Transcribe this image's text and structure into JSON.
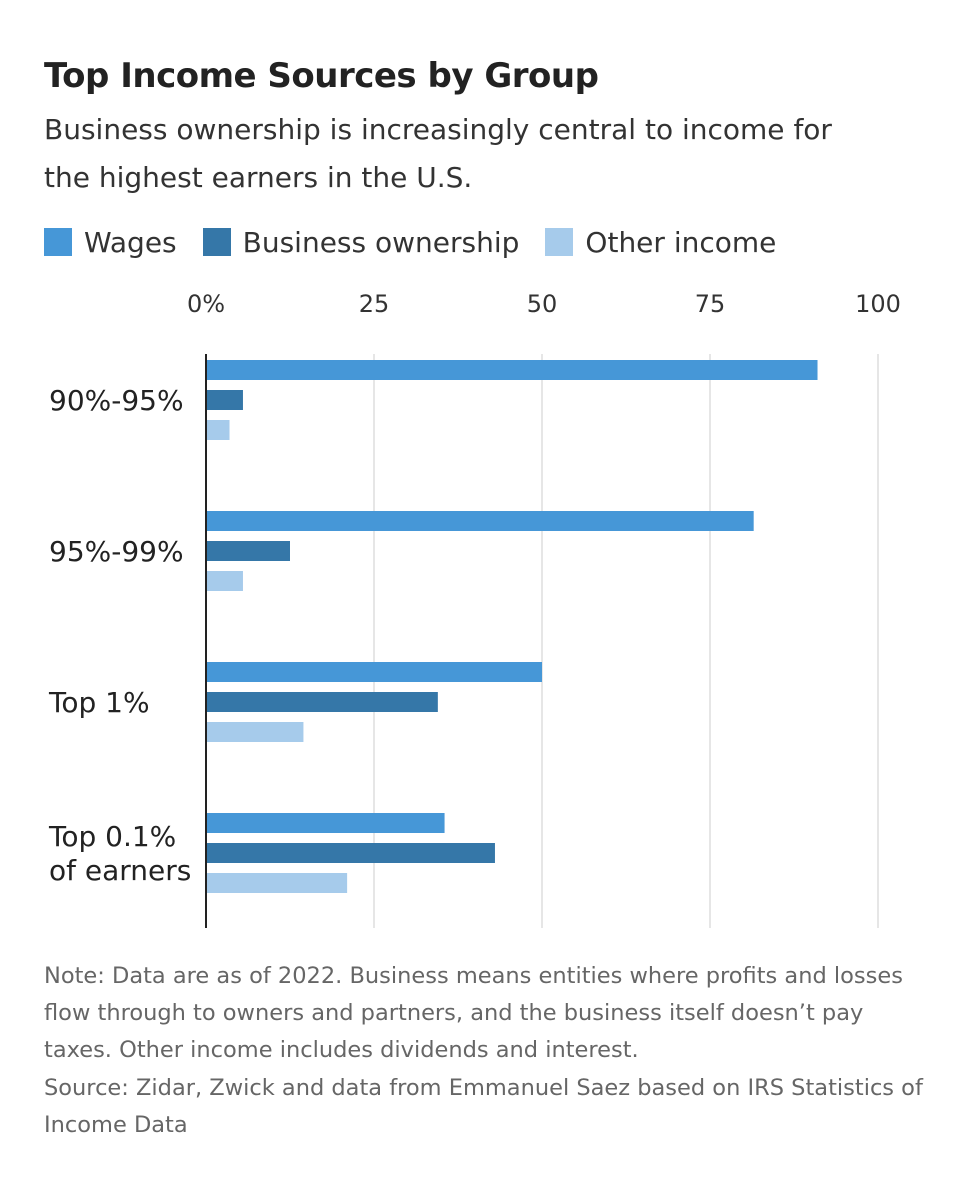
{
  "chart_data": {
    "type": "bar",
    "orientation": "horizontal",
    "title": "Top Income Sources by Group",
    "subtitle": "Business ownership is increasingly central to income for the highest earners in the U.S.",
    "categories": [
      [
        "90%-95%"
      ],
      [
        "95%-99%"
      ],
      [
        "Top 1%"
      ],
      [
        "Top 0.1%",
        "of earners"
      ]
    ],
    "series": [
      {
        "name": "Wages",
        "color": "#4697d7",
        "values": [
          91,
          81.5,
          50,
          35.5
        ]
      },
      {
        "name": "Business ownership",
        "color": "#3577a8",
        "values": [
          5.5,
          12.5,
          34.5,
          43
        ]
      },
      {
        "name": "Other income",
        "color": "#a6cbeb",
        "values": [
          3.5,
          5.5,
          14.5,
          21
        ]
      }
    ],
    "xlim": [
      0,
      100
    ],
    "xticks": [
      0,
      25,
      50,
      75,
      100
    ],
    "xtick_labels": [
      "0%",
      "25",
      "50",
      "75",
      "100"
    ],
    "xaxis_position": "top",
    "grid": true,
    "legend_position": "top-left"
  },
  "note": "Note: Data are as of 2022. Business means entities where profits and losses flow through to owners and partners, and the business itself doesn’t pay taxes. Other income includes dividends and interest.",
  "source": "Source: Zidar, Zwick and data from Emmanuel Saez based on IRS Statistics of Income Data"
}
